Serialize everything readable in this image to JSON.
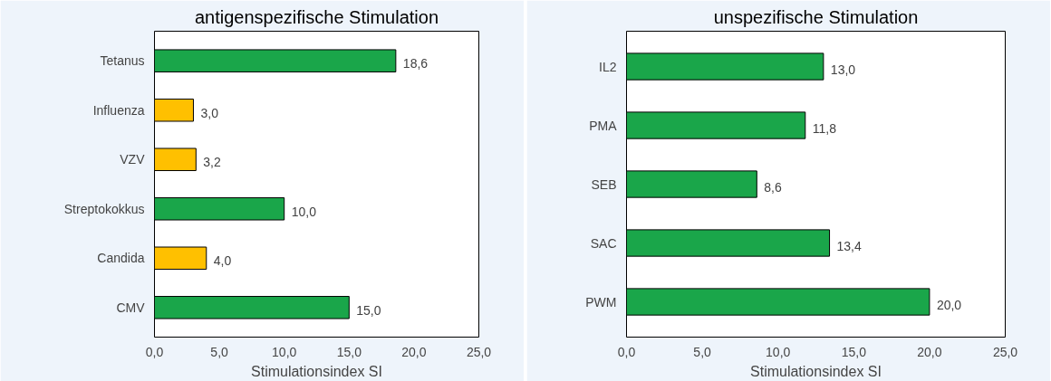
{
  "chart_data": [
    {
      "type": "bar",
      "orientation": "horizontal",
      "title": "antigenspezifische Stimulation",
      "xlabel": "Stimulationsindex SI",
      "categories": [
        "Tetanus",
        "Influenza",
        "VZV",
        "Streptokokkus",
        "Candida",
        "CMV"
      ],
      "values": [
        18.6,
        3.0,
        3.2,
        10.0,
        4.0,
        15.0
      ],
      "colors": [
        "#1aa64a",
        "#ffc000",
        "#ffc000",
        "#1aa64a",
        "#ffc000",
        "#1aa64a"
      ],
      "value_labels": [
        "18,6",
        "3,0",
        "3,2",
        "10,0",
        "4,0",
        "15,0"
      ],
      "xlim": [
        0,
        25
      ],
      "xticks": [
        {
          "value": 0,
          "label": "0,0"
        },
        {
          "value": 5,
          "label": "5,0"
        },
        {
          "value": 10,
          "label": "10,0"
        },
        {
          "value": 15,
          "label": "15,0"
        },
        {
          "value": 20,
          "label": "20,0"
        },
        {
          "value": 25,
          "label": "25,0"
        }
      ],
      "grid": false
    },
    {
      "type": "bar",
      "orientation": "horizontal",
      "title": "unspezifische Stimulation",
      "xlabel": "Stimulationsindex SI",
      "categories": [
        "IL2",
        "PMA",
        "SEB",
        "SAC",
        "PWM"
      ],
      "values": [
        13.0,
        11.8,
        8.6,
        13.4,
        20.0
      ],
      "colors": [
        "#1aa64a",
        "#1aa64a",
        "#1aa64a",
        "#1aa64a",
        "#1aa64a"
      ],
      "value_labels": [
        "13,0",
        "11,8",
        "8,6",
        "13,4",
        "20,0"
      ],
      "xlim": [
        0,
        25
      ],
      "xticks": [
        {
          "value": 0,
          "label": "0,0"
        },
        {
          "value": 5,
          "label": "5,0"
        },
        {
          "value": 10,
          "label": "10,0"
        },
        {
          "value": 15,
          "label": "15,0"
        },
        {
          "value": 20,
          "label": "20,0"
        },
        {
          "value": 25,
          "label": "25,0"
        }
      ],
      "grid": false
    }
  ]
}
